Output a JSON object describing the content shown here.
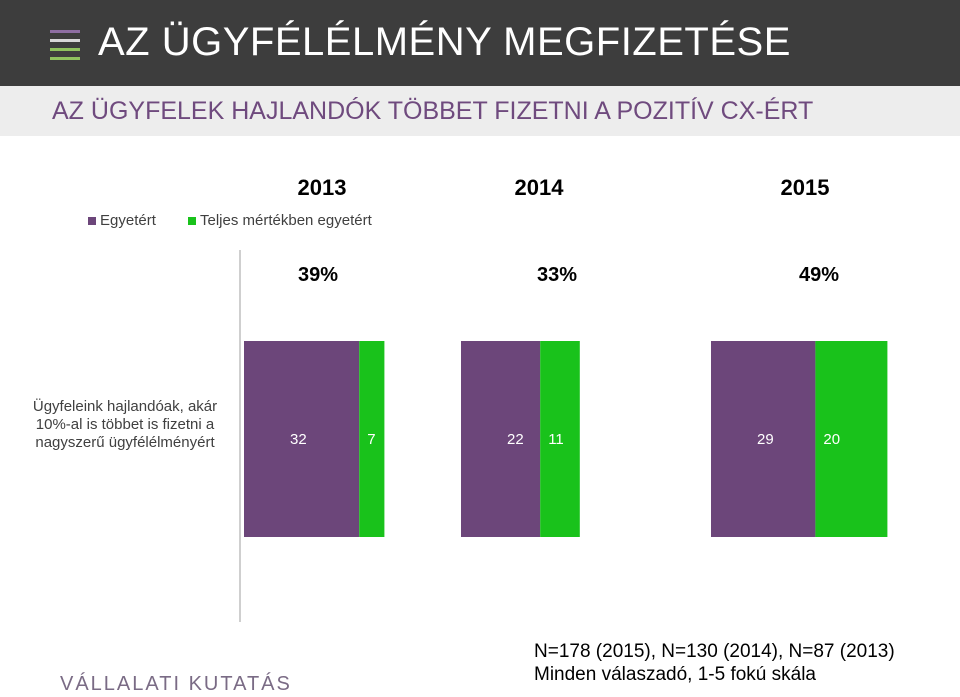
{
  "header": {
    "title": "AZ ÜGYFÉLÉLMÉNY MEGFIZETÉSE",
    "subtitle": "AZ ÜGYFELEK HAJLANDÓK TÖBBET FIZETNI A POZITÍV CX-ÉRT",
    "icon": "menu-icon",
    "icon_colors": [
      "#8e6ea2",
      "#d8d8d8",
      "#8fc25f"
    ]
  },
  "chart_data": {
    "type": "bar",
    "stacked": true,
    "categories": [
      "2013",
      "2014",
      "2015"
    ],
    "totals_label": [
      "39%",
      "33%",
      "49%"
    ],
    "series": [
      {
        "name": "Egyetért",
        "values": [
          32,
          22,
          29
        ],
        "color": "#6c467a"
      },
      {
        "name": "Teljes mértékben egyetért",
        "values": [
          7,
          11,
          20
        ],
        "color": "#19c21b"
      }
    ],
    "row_label": "Ügyfeleink hajlandóak, akár 10%-al is többet is fizetni a nagyszerű ügyfélélményért",
    "legend_position": "top-left",
    "grid": false
  },
  "footer": {
    "brand": "VÁLLALATI KUTATÁS",
    "note_line1": "N=178 (2015), N=130 (2014), N=87 (2013)",
    "note_line2": "Minden válaszadó, 1-5 fokú skála"
  }
}
